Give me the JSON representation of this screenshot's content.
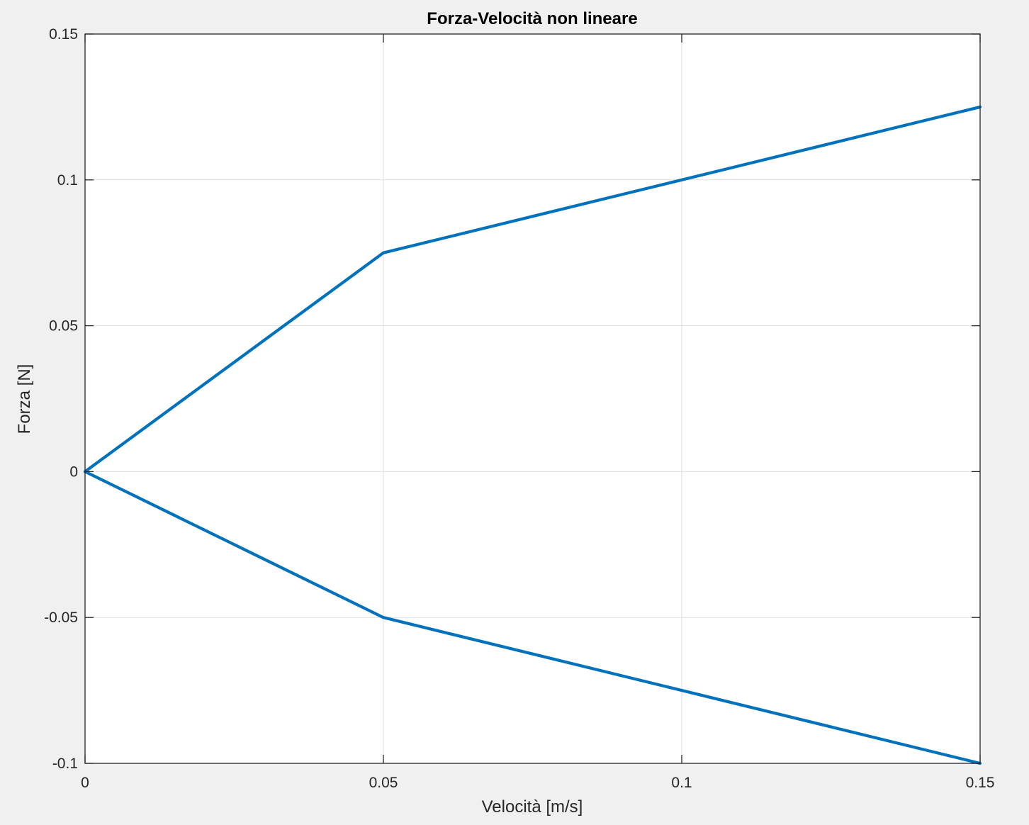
{
  "chart_data": {
    "type": "line",
    "title": "Forza-Velocità non lineare",
    "xlabel": "Velocità [m/s]",
    "ylabel": "Forza [N]",
    "xlim": [
      0,
      0.15
    ],
    "ylim": [
      -0.1,
      0.15
    ],
    "xticks": [
      0,
      0.05,
      0.1,
      0.15
    ],
    "xtick_labels": [
      "0",
      "0.05",
      "0.1",
      "0.15"
    ],
    "yticks": [
      -0.1,
      -0.05,
      0,
      0.05,
      0.1,
      0.15
    ],
    "ytick_labels": [
      "-0.1",
      "-0.05",
      "0",
      "0.05",
      "0.1",
      "0.15"
    ],
    "grid": true,
    "series": [
      {
        "x": [
          0,
          0.05,
          0.1,
          0.15
        ],
        "y": [
          0,
          0.075,
          0.1,
          0.125
        ]
      },
      {
        "x": [
          0,
          0.05,
          0.1,
          0.15
        ],
        "y": [
          0,
          -0.05,
          -0.075,
          -0.1
        ]
      }
    ],
    "colors": {
      "line": "#0072BD",
      "background": "#f0f0f0",
      "plot_area": "#ffffff",
      "grid": "#dfdfdf",
      "axis": "#262626"
    }
  }
}
